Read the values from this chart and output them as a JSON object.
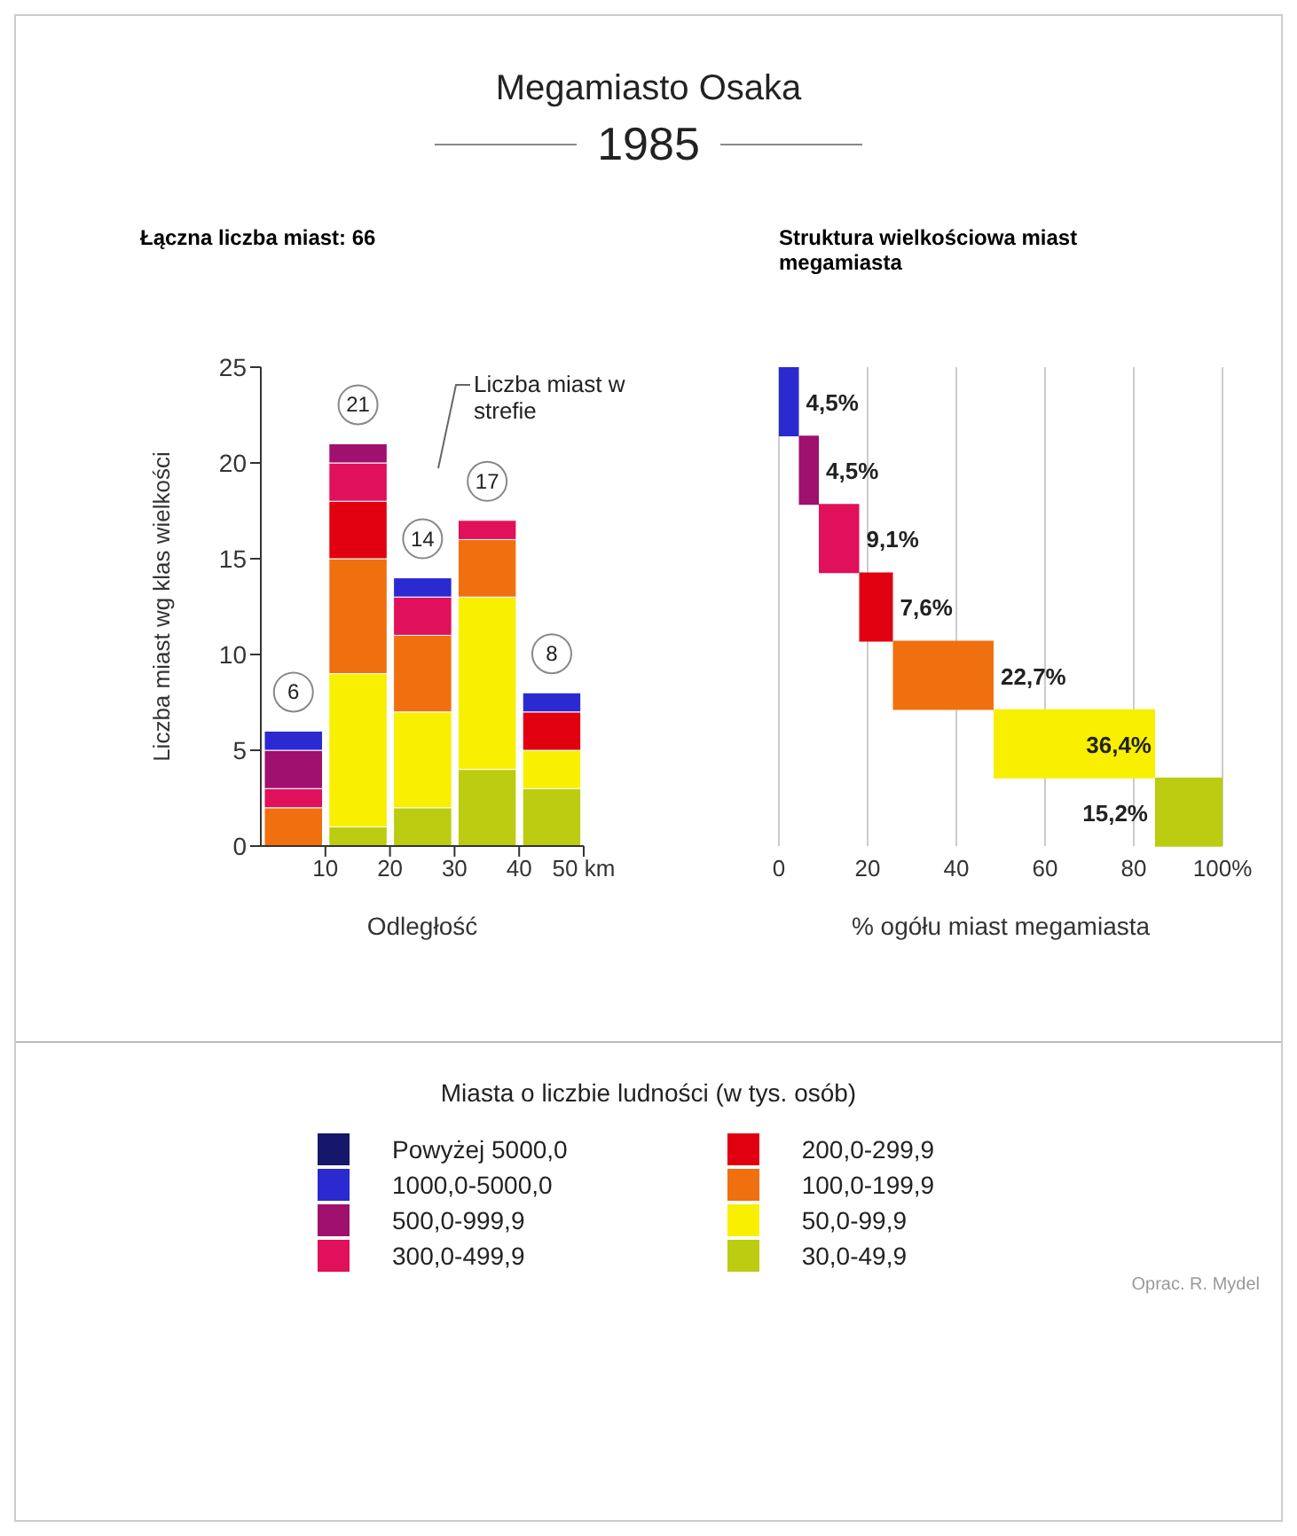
{
  "chart_data": [
    {
      "type": "bar",
      "title": "Megamiasto Osaka",
      "subtitle": "1985",
      "xlabel": "Odległość",
      "ylabel": "Liczba miast wg klas wielkości",
      "legend_title": "Miasta o liczbie ludności (w tys. osób)",
      "legend": "bottom",
      "stacked": true,
      "grid": false,
      "annotations": [
        "Łączna liczba miast: 66",
        "Liczba miast w strefie",
        "Oprac. R. Mydel"
      ],
      "x": [
        5,
        15,
        25,
        35,
        45
      ],
      "xlim": [
        0,
        50
      ],
      "xticks": [
        10,
        20,
        30,
        40,
        {
          "value": 50,
          "label": "50 km"
        }
      ],
      "ylim": [
        0,
        25
      ],
      "yticks": [
        0,
        5,
        10,
        15,
        20,
        25
      ],
      "totals": [
        "6",
        "21",
        "14",
        "17",
        "8"
      ],
      "series": [
        {
          "name": "30,0-49,9",
          "color": "#bccc10",
          "values": [
            0,
            1,
            2,
            4,
            3
          ]
        },
        {
          "name": "50,0-99,9",
          "color": "#f8f000",
          "values": [
            0,
            8,
            5,
            9,
            2
          ]
        },
        {
          "name": "100,0-199,9",
          "color": "#f07010",
          "values": [
            2,
            6,
            4,
            3,
            0
          ]
        },
        {
          "name": "200,0-299,9",
          "color": "#e00010",
          "values": [
            0,
            3,
            0,
            0,
            2
          ]
        },
        {
          "name": "300,0-499,9",
          "color": "#e0105a",
          "values": [
            1,
            2,
            2,
            1,
            0
          ]
        },
        {
          "name": "500,0-999,9",
          "color": "#a0106e",
          "values": [
            2,
            1,
            0,
            0,
            0
          ]
        },
        {
          "name": "1000,0-5000,0",
          "color": "#2a2ad0",
          "values": [
            1,
            0,
            1,
            0,
            1
          ]
        },
        {
          "name": "Powyżej 5000,0",
          "color": "#16166a",
          "values": [
            0,
            0,
            0,
            0,
            0
          ]
        }
      ]
    },
    {
      "type": "bar",
      "title": "Struktura wielkościowa miast megamiasta",
      "xlabel": "% ogółu miast megamiasta",
      "orientation": "horizontal",
      "grid": "x",
      "categories": [
        null,
        null,
        null,
        null,
        null,
        null,
        null
      ],
      "values": [
        4.5,
        4.5,
        9.1,
        7.6,
        22.7,
        36.4,
        15.2
      ],
      "base": [
        0,
        4.5,
        9,
        18.1,
        25.7,
        48.4,
        84.8
      ],
      "colors": [
        "#2a2ad0",
        "#a0106e",
        "#e0105a",
        "#e00010",
        "#f07010",
        "#f8f000",
        "#bccc10"
      ],
      "value_labels": [
        "4,5%",
        "4,5%",
        "9,1%",
        "7,6%",
        "22,7%",
        "36,4%",
        "15,2%"
      ],
      "xlim": [
        0,
        100
      ],
      "xticks": [
        0,
        20,
        40,
        60,
        80,
        {
          "value": 100,
          "label": "100%"
        }
      ]
    }
  ]
}
